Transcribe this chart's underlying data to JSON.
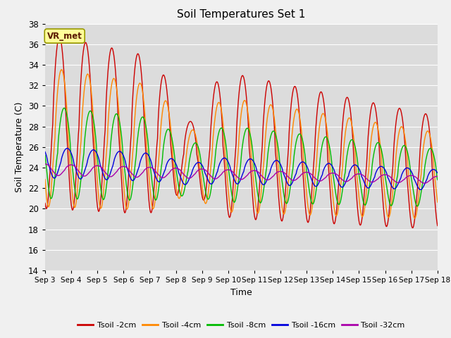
{
  "title": "Soil Temperatures Set 1",
  "xlabel": "Time",
  "ylabel": "Soil Temperature (C)",
  "ylim": [
    14,
    38
  ],
  "yticks": [
    14,
    16,
    18,
    20,
    22,
    24,
    26,
    28,
    30,
    32,
    34,
    36,
    38
  ],
  "xlim_days": [
    0,
    15
  ],
  "xtick_labels": [
    "Sep 3",
    "Sep 4",
    "Sep 5",
    "Sep 6",
    "Sep 7",
    "Sep 8",
    "Sep 9",
    "Sep 10",
    "Sep 11",
    "Sep 12",
    "Sep 13",
    "Sep 14",
    "Sep 15",
    "Sep 16",
    "Sep 17",
    "Sep 18"
  ],
  "bg_color": "#dcdcdc",
  "fig_color": "#f0f0f0",
  "series": [
    {
      "label": "Tsoil -2cm",
      "color": "#cc0000"
    },
    {
      "label": "Tsoil -4cm",
      "color": "#ff8800"
    },
    {
      "label": "Tsoil -8cm",
      "color": "#00bb00"
    },
    {
      "label": "Tsoil -16cm",
      "color": "#0000dd"
    },
    {
      "label": "Tsoil -32cm",
      "color": "#aa00aa"
    }
  ],
  "annotation_text": "VR_met",
  "annotation_bg": "#ffff99",
  "annotation_border": "#999900"
}
